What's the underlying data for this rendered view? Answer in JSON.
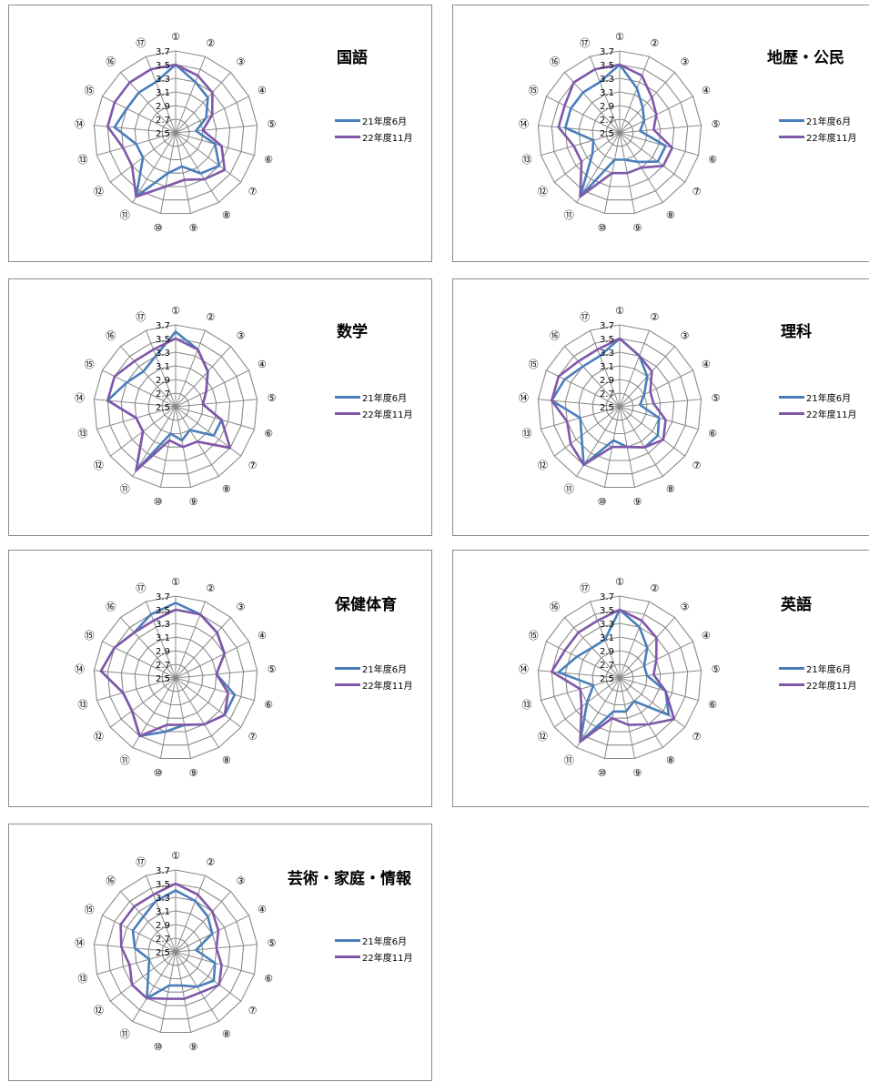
{
  "chart_data": [
    {
      "type": "radar",
      "title": "国語",
      "categories": [
        "①",
        "②",
        "③",
        "④",
        "⑤",
        "⑥",
        "⑦",
        "⑧",
        "⑨",
        "⑩",
        "⑪",
        "⑫",
        "⑬",
        "⑭",
        "⑮",
        "⑯",
        "⑰"
      ],
      "rlim": [
        2.5,
        3.7
      ],
      "rticks": [
        "2.5",
        "2.7",
        "2.9",
        "3.1",
        "3.3",
        "3.5",
        "3.7"
      ],
      "grid": true,
      "legend": "right",
      "series": [
        {
          "name": "21年度6月",
          "color": "#4a7ebb",
          "values": [
            3.5,
            3.3,
            3.2,
            3.0,
            2.8,
            3.1,
            3.3,
            3.2,
            3.0,
            3.1,
            3.6,
            3.1,
            3.1,
            3.4,
            3.3,
            3.3,
            3.3
          ]
        },
        {
          "name": "22年度11月",
          "color": "#7e57a8",
          "values": [
            3.5,
            3.4,
            3.3,
            3.1,
            2.9,
            3.2,
            3.4,
            3.3,
            3.2,
            3.3,
            3.6,
            3.3,
            3.3,
            3.5,
            3.5,
            3.5,
            3.5
          ]
        }
      ]
    },
    {
      "type": "radar",
      "title": "地歴・公民",
      "categories": [
        "①",
        "②",
        "③",
        "④",
        "⑤",
        "⑥",
        "⑦",
        "⑧",
        "⑨",
        "⑩",
        "⑪",
        "⑫",
        "⑬",
        "⑭",
        "⑮",
        "⑯",
        "⑰"
      ],
      "rlim": [
        2.5,
        3.7
      ],
      "rticks": [
        "2.5",
        "2.7",
        "2.9",
        "3.1",
        "3.3",
        "3.5",
        "3.7"
      ],
      "grid": true,
      "legend": "right",
      "series": [
        {
          "name": "21年度6月",
          "color": "#4a7ebb",
          "values": [
            3.5,
            3.2,
            3.0,
            2.9,
            2.8,
            3.2,
            3.2,
            3.0,
            2.9,
            2.9,
            3.6,
            3.0,
            2.9,
            3.3,
            3.3,
            3.3,
            3.3
          ]
        },
        {
          "name": "22年度11月",
          "color": "#7e57a8",
          "values": [
            3.5,
            3.4,
            3.2,
            3.1,
            3.0,
            3.3,
            3.3,
            3.1,
            3.1,
            3.1,
            3.6,
            3.2,
            3.2,
            3.4,
            3.4,
            3.5,
            3.5
          ]
        }
      ]
    },
    {
      "type": "radar",
      "title": "数学",
      "categories": [
        "①",
        "②",
        "③",
        "④",
        "⑤",
        "⑥",
        "⑦",
        "⑧",
        "⑨",
        "⑩",
        "⑪",
        "⑫",
        "⑬",
        "⑭",
        "⑮",
        "⑯",
        "⑰"
      ],
      "rlim": [
        2.5,
        3.7
      ],
      "rticks": [
        "2.5",
        "2.7",
        "2.9",
        "3.1",
        "3.3",
        "3.5",
        "3.7"
      ],
      "grid": true,
      "legend": "right",
      "series": [
        {
          "name": "21年度6月",
          "color": "#4a7ebb",
          "values": [
            3.6,
            3.4,
            3.2,
            3.0,
            2.9,
            3.2,
            3.2,
            2.9,
            3.0,
            2.9,
            3.6,
            3.1,
            3.1,
            3.5,
            3.3,
            3.2,
            3.3
          ]
        },
        {
          "name": "22年度11月",
          "color": "#7e57a8",
          "values": [
            3.5,
            3.4,
            3.2,
            3.0,
            2.9,
            3.2,
            3.5,
            3.1,
            3.1,
            3.0,
            3.6,
            3.1,
            3.1,
            3.5,
            3.5,
            3.4,
            3.4
          ]
        }
      ]
    },
    {
      "type": "radar",
      "title": "理科",
      "categories": [
        "①",
        "②",
        "③",
        "④",
        "⑤",
        "⑥",
        "⑦",
        "⑧",
        "⑨",
        "⑩",
        "⑪",
        "⑫",
        "⑬",
        "⑭",
        "⑮",
        "⑯",
        "⑰"
      ],
      "rlim": [
        2.5,
        3.7
      ],
      "rticks": [
        "2.5",
        "2.7",
        "2.9",
        "3.1",
        "3.3",
        "3.5",
        "3.7"
      ],
      "grid": true,
      "legend": "right",
      "series": [
        {
          "name": "21年度6月",
          "color": "#4a7ebb",
          "values": [
            3.5,
            3.3,
            3.1,
            2.9,
            2.8,
            3.1,
            3.2,
            3.2,
            3.1,
            3.0,
            3.5,
            3.2,
            3.1,
            3.5,
            3.4,
            3.3,
            3.3
          ]
        },
        {
          "name": "22年度11月",
          "color": "#7e57a8",
          "values": [
            3.5,
            3.3,
            3.2,
            3.0,
            3.0,
            3.2,
            3.3,
            3.2,
            3.1,
            3.1,
            3.5,
            3.4,
            3.3,
            3.5,
            3.5,
            3.4,
            3.4
          ]
        }
      ]
    },
    {
      "type": "radar",
      "title": "保健体育",
      "categories": [
        "①",
        "②",
        "③",
        "④",
        "⑤",
        "⑥",
        "⑦",
        "⑧",
        "⑨",
        "⑩",
        "⑪",
        "⑫",
        "⑬",
        "⑭",
        "⑮",
        "⑯",
        "⑰"
      ],
      "rlim": [
        2.5,
        3.7
      ],
      "rticks": [
        "2.5",
        "2.7",
        "2.9",
        "3.1",
        "3.3",
        "3.5",
        "3.7"
      ],
      "grid": true,
      "legend": "right",
      "series": [
        {
          "name": "21年度6月",
          "color": "#4a7ebb",
          "values": [
            3.6,
            3.5,
            3.4,
            3.3,
            3.1,
            3.4,
            3.4,
            3.3,
            3.2,
            3.3,
            3.5,
            3.3,
            3.3,
            3.6,
            3.5,
            3.4,
            3.5
          ]
        },
        {
          "name": "22年度11月",
          "color": "#7e57a8",
          "values": [
            3.5,
            3.5,
            3.4,
            3.3,
            3.1,
            3.3,
            3.4,
            3.3,
            3.2,
            3.2,
            3.5,
            3.3,
            3.3,
            3.6,
            3.5,
            3.4,
            3.4
          ]
        }
      ]
    },
    {
      "type": "radar",
      "title": "英語",
      "categories": [
        "①",
        "②",
        "③",
        "④",
        "⑤",
        "⑥",
        "⑦",
        "⑧",
        "⑨",
        "⑩",
        "⑪",
        "⑫",
        "⑬",
        "⑭",
        "⑮",
        "⑯",
        "⑰"
      ],
      "rlim": [
        2.5,
        3.7
      ],
      "rticks": [
        "2.5",
        "2.7",
        "2.9",
        "3.1",
        "3.3",
        "3.5",
        "3.7"
      ],
      "grid": true,
      "legend": "right",
      "series": [
        {
          "name": "21年度6月",
          "color": "#4a7ebb",
          "values": [
            3.5,
            3.3,
            3.1,
            2.9,
            2.9,
            3.2,
            3.4,
            2.9,
            3.0,
            3.0,
            3.6,
            3.1,
            2.9,
            3.4,
            3.2,
            3.1,
            3.1
          ]
        },
        {
          "name": "22年度11月",
          "color": "#7e57a8",
          "values": [
            3.5,
            3.4,
            3.3,
            3.1,
            3.0,
            3.2,
            3.5,
            3.3,
            3.2,
            3.1,
            3.6,
            3.2,
            3.1,
            3.5,
            3.4,
            3.4,
            3.4
          ]
        }
      ]
    },
    {
      "type": "radar",
      "title": "芸術・家庭・情報",
      "categories": [
        "①",
        "②",
        "③",
        "④",
        "⑤",
        "⑥",
        "⑦",
        "⑧",
        "⑨",
        "⑩",
        "⑪",
        "⑫",
        "⑬",
        "⑭",
        "⑮",
        "⑯",
        "⑰"
      ],
      "rlim": [
        2.5,
        3.7
      ],
      "rticks": [
        "2.5",
        "2.7",
        "2.9",
        "3.1",
        "3.3",
        "3.5",
        "3.7"
      ],
      "grid": true,
      "legend": "right",
      "series": [
        {
          "name": "21年度6月",
          "color": "#4a7ebb",
          "values": [
            3.4,
            3.3,
            3.2,
            3.1,
            2.8,
            3.1,
            3.2,
            3.1,
            3.0,
            3.0,
            3.3,
            3.0,
            2.9,
            3.1,
            3.2,
            3.2,
            3.3
          ]
        },
        {
          "name": "22年度11月",
          "color": "#7e57a8",
          "values": [
            3.5,
            3.4,
            3.3,
            3.2,
            3.1,
            3.2,
            3.3,
            3.2,
            3.2,
            3.2,
            3.3,
            3.3,
            3.2,
            3.3,
            3.4,
            3.4,
            3.4
          ]
        }
      ]
    }
  ]
}
